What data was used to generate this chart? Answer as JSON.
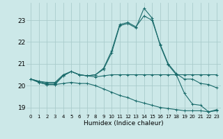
{
  "xlabel": "Humidex (Indice chaleur)",
  "x_ticks": [
    0,
    1,
    2,
    3,
    4,
    5,
    6,
    7,
    8,
    9,
    10,
    11,
    12,
    13,
    14,
    15,
    16,
    17,
    18,
    19,
    20,
    21,
    22,
    23
  ],
  "ylim": [
    18.7,
    23.8
  ],
  "xlim": [
    -0.5,
    23.5
  ],
  "y_ticks": [
    19,
    20,
    21,
    22,
    23
  ],
  "bg_color": "#cce8e8",
  "grid_color": "#aacccc",
  "line_color": "#1a6b6b",
  "series": [
    [
      20.3,
      20.2,
      20.15,
      20.15,
      20.5,
      20.65,
      20.5,
      20.45,
      20.4,
      20.45,
      20.5,
      20.5,
      20.5,
      20.5,
      20.5,
      20.5,
      20.5,
      20.5,
      20.5,
      20.5,
      20.5,
      20.5,
      20.5,
      20.5
    ],
    [
      20.3,
      20.2,
      20.1,
      20.1,
      20.45,
      20.65,
      20.5,
      20.45,
      20.5,
      20.8,
      21.6,
      22.8,
      22.9,
      22.7,
      23.2,
      23.0,
      21.9,
      21.0,
      20.55,
      20.3,
      20.3,
      20.1,
      20.05,
      19.9
    ],
    [
      20.3,
      20.15,
      20.05,
      20.05,
      20.1,
      20.15,
      20.1,
      20.1,
      20.0,
      19.85,
      19.7,
      19.55,
      19.45,
      19.3,
      19.2,
      19.1,
      19.0,
      18.95,
      18.9,
      18.85,
      18.85,
      18.85,
      18.8,
      18.85
    ],
    [
      20.3,
      20.15,
      20.05,
      20.05,
      20.45,
      20.65,
      20.5,
      20.45,
      20.5,
      20.75,
      21.5,
      22.75,
      22.85,
      22.65,
      23.55,
      23.1,
      21.85,
      20.95,
      20.5,
      19.65,
      19.15,
      19.1,
      18.8,
      18.9
    ]
  ]
}
